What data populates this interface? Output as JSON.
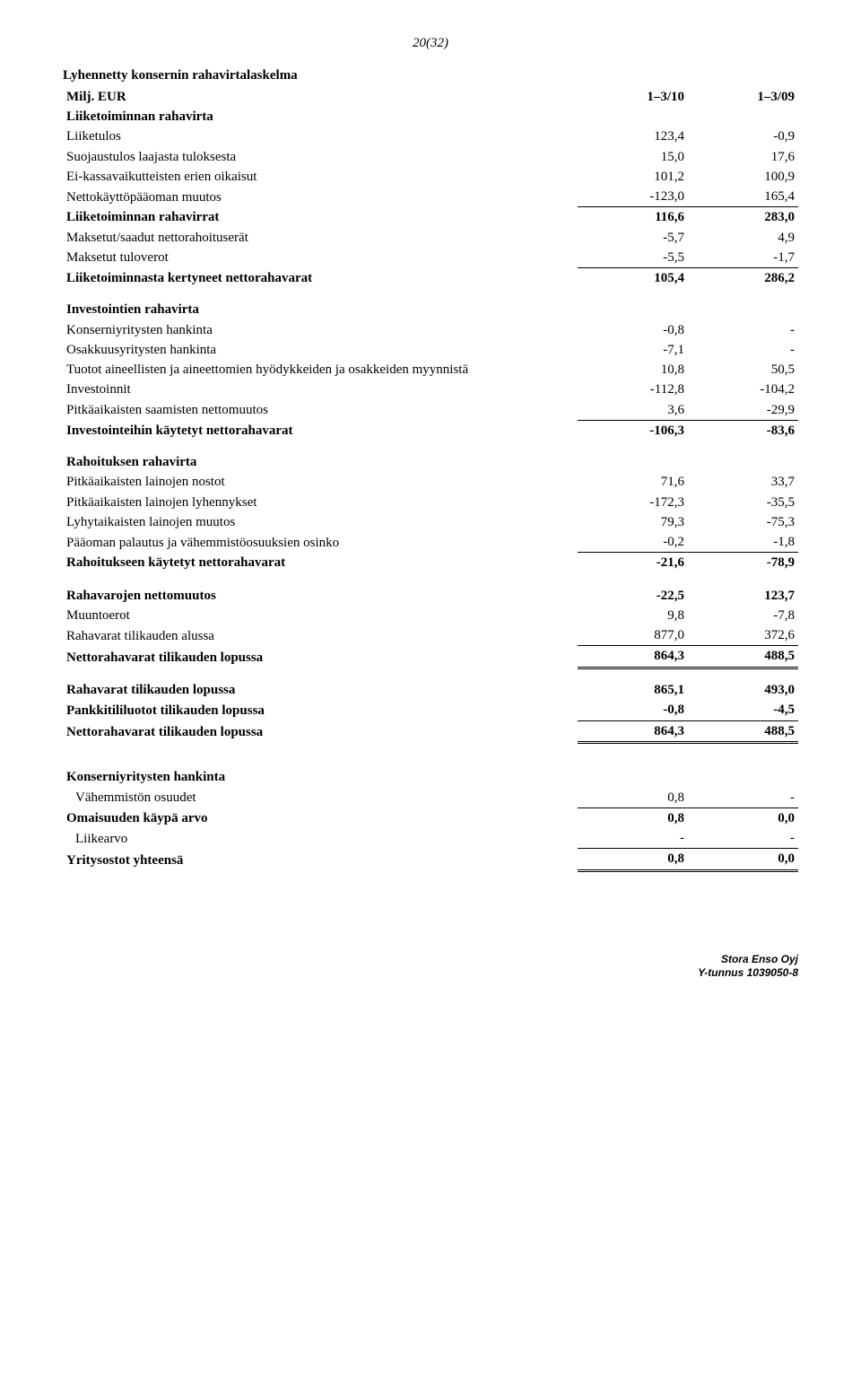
{
  "page_number": "20(32)",
  "title_line1": "Lyhennetty konsernin rahavirtalaskelma",
  "title_line2": "Milj. EUR",
  "col_headers": {
    "c1": "1–3/10",
    "c2": "1–3/09"
  },
  "s1_head": "Liiketoiminnan rahavirta",
  "s1_r1": {
    "label": "Liiketulos",
    "v1": "123,4",
    "v2": "-0,9"
  },
  "s1_r2": {
    "label": "Suojaustulos laajasta tuloksesta",
    "v1": "15,0",
    "v2": "17,6"
  },
  "s1_r3": {
    "label": "Ei-kassavaikutteisten erien oikaisut",
    "v1": "101,2",
    "v2": "100,9"
  },
  "s1_r4": {
    "label": "Nettokäyttöpääoman muutos",
    "v1": "-123,0",
    "v2": "165,4"
  },
  "s1_r5": {
    "label": "Liiketoiminnan rahavirrat",
    "v1": "116,6",
    "v2": "283,0"
  },
  "s1_r6": {
    "label": "Maksetut/saadut nettorahoituserät",
    "v1": "-5,7",
    "v2": "4,9"
  },
  "s1_r7": {
    "label": "Maksetut tuloverot",
    "v1": "-5,5",
    "v2": "-1,7"
  },
  "s1_r8": {
    "label": "Liiketoiminnasta kertyneet nettorahavarat",
    "v1": "105,4",
    "v2": "286,2"
  },
  "s2_head": "Investointien rahavirta",
  "s2_r1": {
    "label": "Konserniyritysten hankinta",
    "v1": "-0,8",
    "v2": "-"
  },
  "s2_r2": {
    "label": "Osakkuusyritysten hankinta",
    "v1": "-7,1",
    "v2": "-"
  },
  "s2_r3": {
    "label": "Tuotot aineellisten ja aineettomien hyödykkeiden ja osakkeiden myynnistä",
    "v1": "10,8",
    "v2": "50,5"
  },
  "s2_r4": {
    "label": "Investoinnit",
    "v1": "-112,8",
    "v2": "-104,2"
  },
  "s2_r5": {
    "label": "Pitkäaikaisten saamisten nettomuutos",
    "v1": "3,6",
    "v2": "-29,9"
  },
  "s2_r6": {
    "label": "Investointeihin käytetyt nettorahavarat",
    "v1": "-106,3",
    "v2": "-83,6"
  },
  "s3_head": "Rahoituksen rahavirta",
  "s3_r1": {
    "label": "Pitkäaikaisten lainojen nostot",
    "v1": "71,6",
    "v2": "33,7"
  },
  "s3_r2": {
    "label": "Pitkäaikaisten lainojen lyhennykset",
    "v1": "-172,3",
    "v2": "-35,5"
  },
  "s3_r3": {
    "label": "Lyhytaikaisten lainojen muutos",
    "v1": "79,3",
    "v2": "-75,3"
  },
  "s3_r4": {
    "label": "Pääoman palautus ja vähemmistöosuuksien osinko",
    "v1": "-0,2",
    "v2": "-1,8"
  },
  "s3_r5": {
    "label": "Rahoitukseen käytetyt nettorahavarat",
    "v1": "-21,6",
    "v2": "-78,9"
  },
  "s4_r1": {
    "label": "Rahavarojen nettomuutos",
    "v1": "-22,5",
    "v2": "123,7"
  },
  "s4_r2": {
    "label": "Muuntoerot",
    "v1": "9,8",
    "v2": "-7,8"
  },
  "s4_r3": {
    "label": "Rahavarat tilikauden alussa",
    "v1": "877,0",
    "v2": "372,6"
  },
  "s4_r4": {
    "label": "Nettorahavarat tilikauden lopussa",
    "v1": "864,3",
    "v2": "488,5"
  },
  "s5_r1": {
    "label": "Rahavarat tilikauden lopussa",
    "v1": "865,1",
    "v2": "493,0"
  },
  "s5_r2": {
    "label": "Pankkitililuotot tilikauden lopussa",
    "v1": "-0,8",
    "v2": "-4,5"
  },
  "s5_r3": {
    "label": "Nettorahavarat tilikauden lopussa",
    "v1": "864,3",
    "v2": "488,5"
  },
  "s6_head": "Konserniyritysten hankinta",
  "s6_r1": {
    "label": "Vähemmistön osuudet",
    "v1": "0,8",
    "v2": "-"
  },
  "s6_r2": {
    "label": "Omaisuuden käypä arvo",
    "v1": "0,8",
    "v2": "0,0"
  },
  "s6_r3": {
    "label": "Liikearvo",
    "v1": "-",
    "v2": "-"
  },
  "s6_r4": {
    "label": "Yritysostot yhteensä",
    "v1": "0,8",
    "v2": "0,0"
  },
  "footer_company": "Stora Enso Oyj",
  "footer_id": "Y-tunnus 1039050-8"
}
